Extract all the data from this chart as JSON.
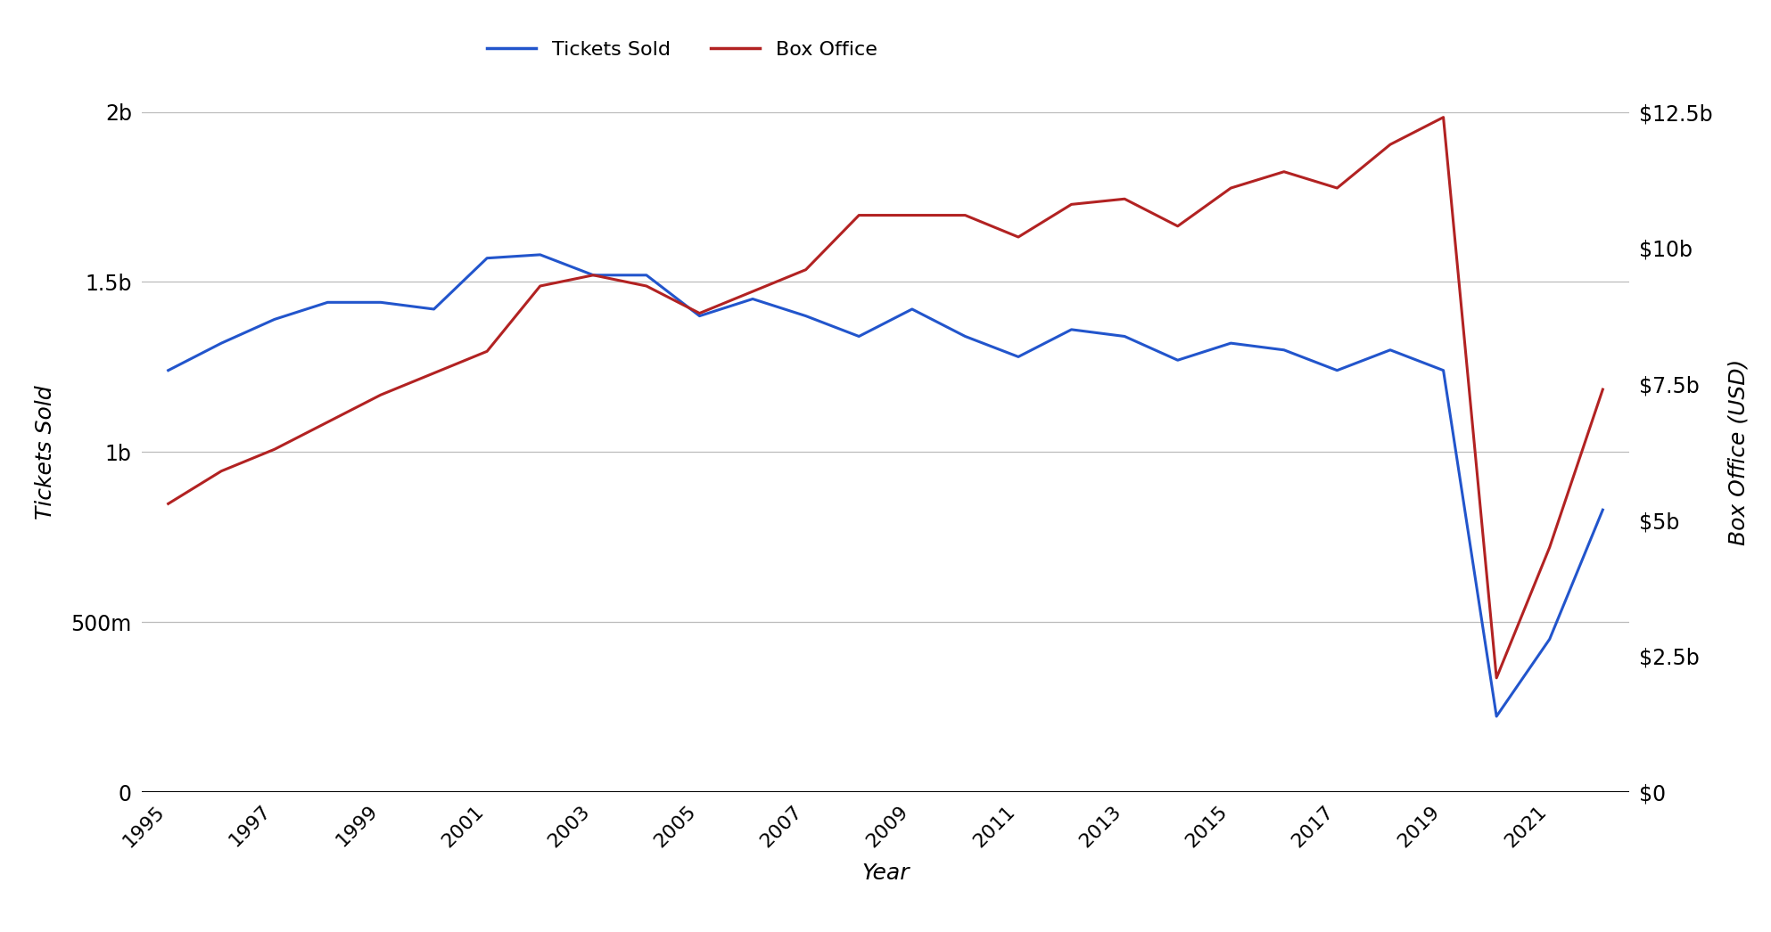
{
  "years": [
    1995,
    1996,
    1997,
    1998,
    1999,
    2000,
    2001,
    2002,
    2003,
    2004,
    2005,
    2006,
    2007,
    2008,
    2009,
    2010,
    2011,
    2012,
    2013,
    2014,
    2015,
    2016,
    2017,
    2018,
    2019,
    2020,
    2021,
    2022
  ],
  "tickets_sold": [
    1240000000.0,
    1320000000.0,
    1390000000.0,
    1440000000.0,
    1440000000.0,
    1420000000.0,
    1570000000.0,
    1580000000.0,
    1520000000.0,
    1520000000.0,
    1400000000.0,
    1450000000.0,
    1400000000.0,
    1340000000.0,
    1420000000.0,
    1340000000.0,
    1280000000.0,
    1360000000.0,
    1340000000.0,
    1270000000.0,
    1320000000.0,
    1300000000.0,
    1240000000.0,
    1300000000.0,
    1240000000.0,
    223000000.0,
    450000000.0,
    830000000.0
  ],
  "box_office": [
    5300000000.0,
    5900000000.0,
    6300000000.0,
    6800000000.0,
    7300000000.0,
    7700000000.0,
    8100000000.0,
    9300000000.0,
    9500000000.0,
    9300000000.0,
    8800000000.0,
    9200000000.0,
    9600000000.0,
    10600000000.0,
    10600000000.0,
    10600000000.0,
    10200000000.0,
    10800000000.0,
    10900000000.0,
    10400000000.0,
    11100000000.0,
    11400000000.0,
    11100000000.0,
    11900000000.0,
    12400000000.0,
    2100000000.0,
    4500000000.0,
    7400000000.0
  ],
  "tickets_color": "#2255cc",
  "box_office_color": "#b22222",
  "background_color": "#ffffff",
  "grid_color": "#bbbbbb",
  "xlabel": "Year",
  "ylabel_left": "Tickets Sold",
  "ylabel_right": "Box Office (USD)",
  "legend_labels": [
    "Tickets Sold",
    "Box Office"
  ],
  "ylim_left": [
    0,
    2000000000.0
  ],
  "ylim_right": [
    0,
    12500000000.0
  ],
  "yticks_left": [
    0,
    500000000.0,
    1000000000.0,
    1500000000.0,
    2000000000.0
  ],
  "ytick_labels_left": [
    "0",
    "500m",
    "1b",
    "1.5b",
    "2b"
  ],
  "yticks_right": [
    0,
    2500000000.0,
    5000000000.0,
    7500000000.0,
    10000000000.0,
    12500000000.0
  ],
  "ytick_labels_right": [
    "$0",
    "$2.5b",
    "$5b",
    "$7.5b",
    "$10b",
    "$12.5b"
  ],
  "xtick_start": 1995,
  "xtick_end": 2022,
  "xtick_step": 2,
  "line_width": 2.2,
  "figsize": [
    19.86,
    10.46
  ],
  "dpi": 100
}
